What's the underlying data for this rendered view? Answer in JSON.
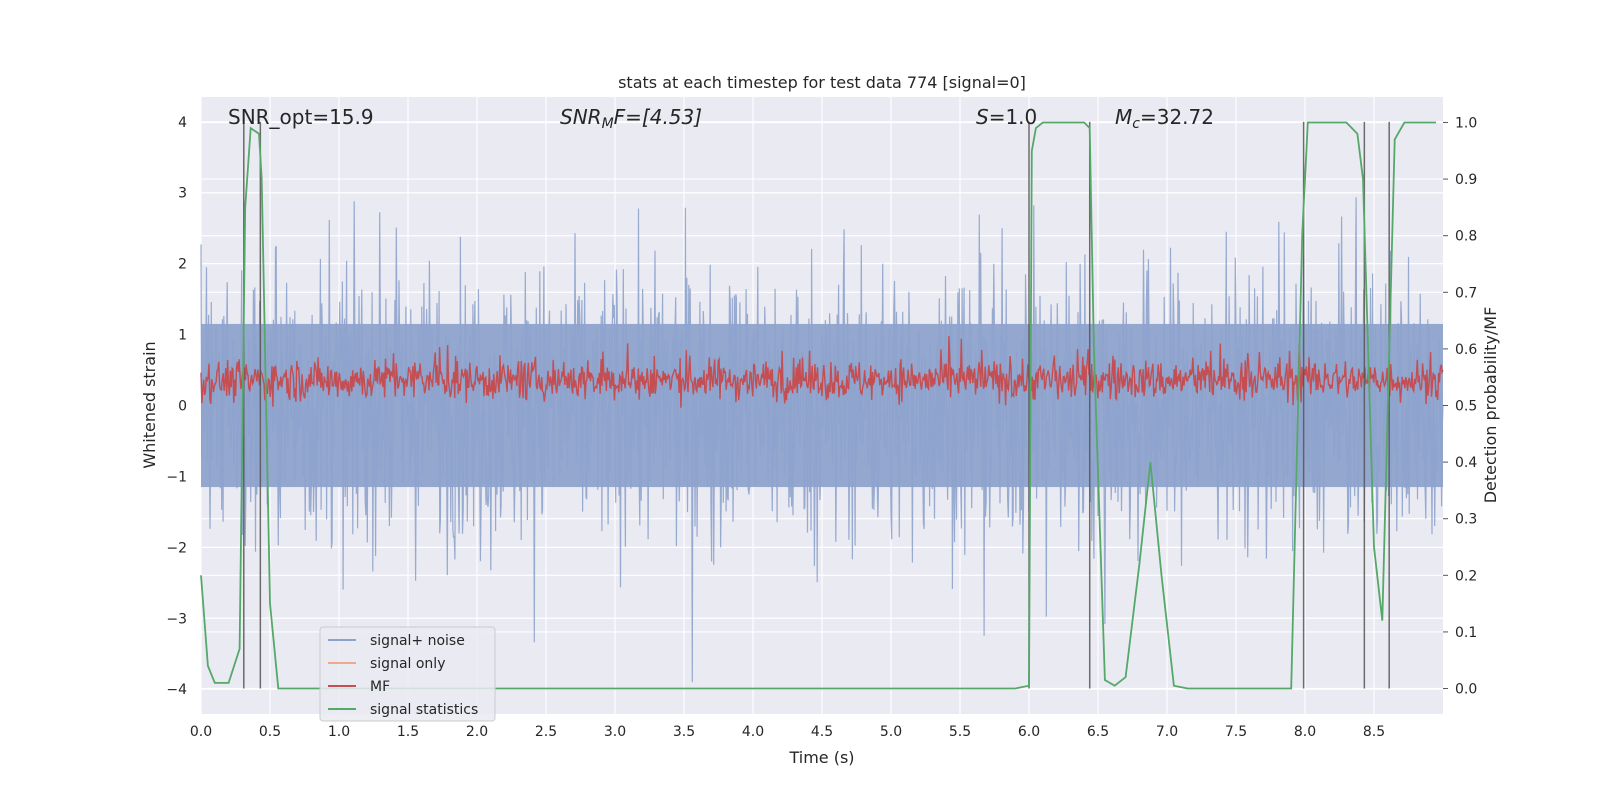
{
  "chart_data": {
    "type": "line",
    "title": "stats at each timestep for test data 774 [signal=0]",
    "xlabel": "Time (s)",
    "ylabel_left": "Whitened strain",
    "ylabel_right": "Detection probability/MF",
    "xlim": [
      0.0,
      9.0
    ],
    "ylim_left": [
      -4.35,
      4.35
    ],
    "ylim_right": [
      -0.045,
      1.045
    ],
    "x_ticks": [
      "0.0",
      "0.5",
      "1.0",
      "1.5",
      "2.0",
      "2.5",
      "3.0",
      "3.5",
      "4.0",
      "4.5",
      "5.0",
      "5.5",
      "6.0",
      "6.5",
      "7.0",
      "7.5",
      "8.0",
      "8.5"
    ],
    "y_ticks_left": [
      "−4",
      "−3",
      "−2",
      "−1",
      "0",
      "1",
      "2",
      "3",
      "4"
    ],
    "y_ticks_right": [
      "0.0",
      "0.1",
      "0.2",
      "0.3",
      "0.4",
      "0.5",
      "0.6",
      "0.7",
      "0.8",
      "0.9",
      "1.0"
    ],
    "grid": true,
    "legend_placement": "lower-left",
    "annotations": {
      "snr_opt": "SNR_opt=15.9",
      "snr_mf_main": "SNR",
      "snr_mf_sub": "M",
      "snr_mf_rest": "F=[4.53]",
      "s_main": "S",
      "s_rest": "=1.0",
      "mc_main": "M",
      "mc_sub": "c",
      "mc_rest": "=32.72"
    },
    "series": [
      {
        "name": "signal+ noise",
        "color": "#8ea3cc",
        "axis": "left",
        "noise_amplitude": 1.0,
        "peak_max": 4.0,
        "peak_min": -3.9
      },
      {
        "name": "signal only",
        "color": "#f0a88a",
        "axis": "left"
      },
      {
        "name": "MF",
        "color": "#c44e52",
        "axis": "right",
        "baseline": 0.545,
        "spread": 0.03
      },
      {
        "name": "signal statistics",
        "color": "#55a868",
        "axis": "right",
        "x": [
          0.0,
          0.05,
          0.1,
          0.2,
          0.28,
          0.32,
          0.36,
          0.42,
          0.44,
          0.5,
          0.56,
          0.6,
          0.7,
          1.0,
          2.0,
          3.0,
          4.0,
          5.0,
          5.9,
          6.0,
          6.02,
          6.05,
          6.1,
          6.4,
          6.44,
          6.47,
          6.55,
          6.62,
          6.7,
          6.8,
          6.88,
          6.96,
          7.05,
          7.15,
          7.3,
          7.9,
          7.98,
          8.02,
          8.1,
          8.3,
          8.38,
          8.42,
          8.5,
          8.56,
          8.65,
          8.72,
          8.8,
          8.95
        ],
        "y": [
          0.2,
          0.04,
          0.01,
          0.01,
          0.07,
          0.85,
          0.99,
          0.98,
          0.9,
          0.15,
          0.0,
          0.0,
          0.0,
          0.0,
          0.0,
          0.0,
          0.0,
          0.0,
          0.0,
          0.005,
          0.95,
          0.99,
          1.0,
          1.0,
          0.99,
          0.6,
          0.015,
          0.005,
          0.02,
          0.22,
          0.4,
          0.2,
          0.005,
          0.0,
          0.0,
          0.0,
          0.8,
          1.0,
          1.0,
          1.0,
          0.98,
          0.9,
          0.25,
          0.12,
          0.97,
          1.0,
          1.0,
          1.0
        ]
      }
    ],
    "vertical_lines": [
      0.31,
      0.43,
      6.0,
      6.44,
      7.99,
      8.43,
      8.61
    ]
  }
}
